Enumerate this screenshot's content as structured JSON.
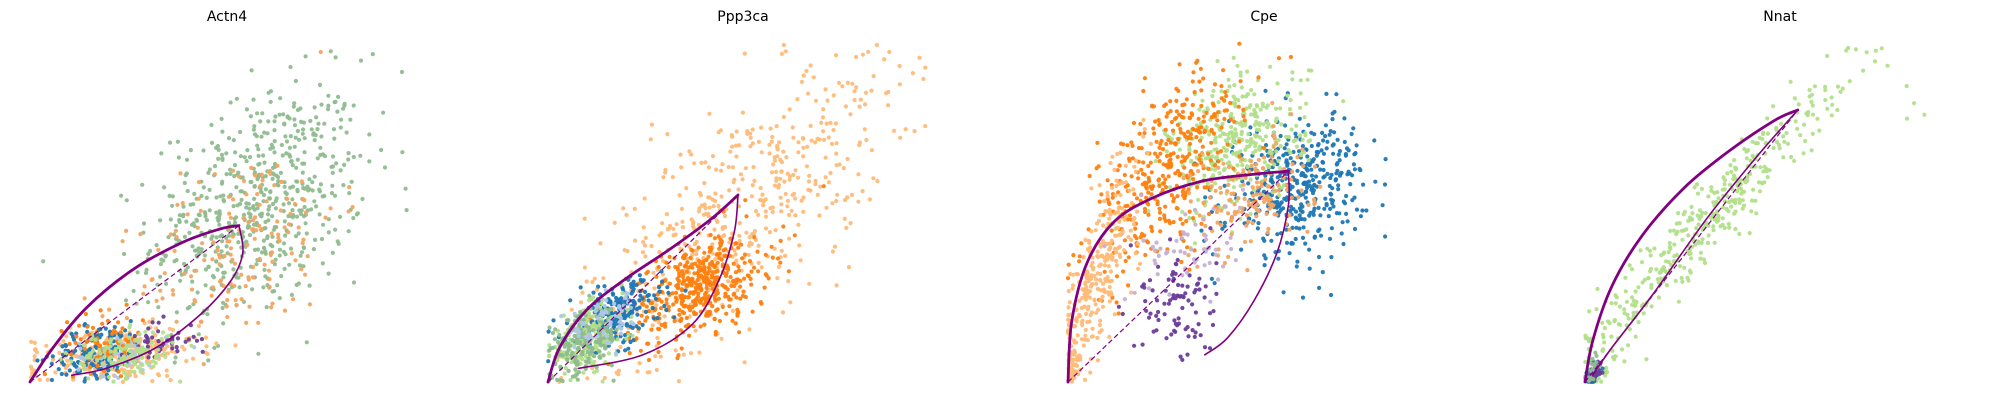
{
  "chart_data": [
    {
      "type": "scatter",
      "title": "Actn4",
      "xlabel": "",
      "ylabel": "",
      "axes": "off",
      "grid": false,
      "xlim": [
        0,
        1
      ],
      "ylim": [
        0,
        1
      ],
      "clusters": [
        {
          "color": "#8fbc8f",
          "count": 620,
          "cx": 0.6,
          "cy": 0.52,
          "sx": 0.14,
          "sy": 0.17,
          "rho": 0.35
        },
        {
          "color": "#ffbb78",
          "count": 260,
          "cx": 0.22,
          "cy": 0.08,
          "sx": 0.11,
          "sy": 0.04,
          "rho": 0.3
        },
        {
          "color": "#f4a460",
          "count": 160,
          "cx": 0.55,
          "cy": 0.4,
          "sx": 0.13,
          "sy": 0.15,
          "rho": 0.4
        },
        {
          "color": "#1f77b4",
          "count": 150,
          "cx": 0.18,
          "cy": 0.09,
          "sx": 0.06,
          "sy": 0.04,
          "rho": 0.2
        },
        {
          "color": "#aec7e8",
          "count": 60,
          "cx": 0.24,
          "cy": 0.08,
          "sx": 0.06,
          "sy": 0.03,
          "rho": 0.1
        },
        {
          "color": "#ff7f0e",
          "count": 70,
          "cx": 0.2,
          "cy": 0.12,
          "sx": 0.05,
          "sy": 0.04,
          "rho": 0.1
        },
        {
          "color": "#6a3d9a",
          "count": 45,
          "cx": 0.34,
          "cy": 0.12,
          "sx": 0.05,
          "sy": 0.03,
          "rho": 0.1
        },
        {
          "color": "#b2df8a",
          "count": 120,
          "cx": 0.25,
          "cy": 0.08,
          "sx": 0.07,
          "sy": 0.035,
          "rho": 0.2
        }
      ],
      "curve_up": [
        [
          0.0,
          0.0
        ],
        [
          0.06,
          0.1
        ],
        [
          0.15,
          0.22
        ],
        [
          0.27,
          0.33
        ],
        [
          0.4,
          0.41
        ],
        [
          0.5,
          0.45
        ],
        [
          0.55,
          0.46
        ]
      ],
      "curve_down": [
        [
          0.55,
          0.46
        ],
        [
          0.56,
          0.38
        ],
        [
          0.53,
          0.3
        ],
        [
          0.45,
          0.2
        ],
        [
          0.33,
          0.1
        ],
        [
          0.2,
          0.04
        ],
        [
          0.11,
          0.02
        ]
      ],
      "steady_state": [
        [
          0.0,
          0.0
        ],
        [
          0.55,
          0.46
        ]
      ]
    },
    {
      "type": "scatter",
      "title": "Ppp3ca",
      "xlabel": "",
      "ylabel": "",
      "axes": "off",
      "grid": false,
      "xlim": [
        0,
        1
      ],
      "ylim": [
        0,
        1
      ],
      "clusters": [
        {
          "color": "#ffbb78",
          "count": 520,
          "cx": 0.5,
          "cy": 0.5,
          "sx": 0.2,
          "sy": 0.22,
          "rho": 0.7
        },
        {
          "color": "#ff7f0e",
          "count": 420,
          "cx": 0.4,
          "cy": 0.28,
          "sx": 0.09,
          "sy": 0.08,
          "rho": 0.5
        },
        {
          "color": "#1f77b4",
          "count": 230,
          "cx": 0.18,
          "cy": 0.2,
          "sx": 0.06,
          "sy": 0.05,
          "rho": 0.4
        },
        {
          "color": "#b2df8a",
          "count": 200,
          "cx": 0.1,
          "cy": 0.12,
          "sx": 0.05,
          "sy": 0.05,
          "rho": 0.4
        },
        {
          "color": "#8fbc8f",
          "count": 180,
          "cx": 0.09,
          "cy": 0.11,
          "sx": 0.05,
          "sy": 0.05,
          "rho": 0.4
        },
        {
          "color": "#aec7e8",
          "count": 60,
          "cx": 0.16,
          "cy": 0.18,
          "sx": 0.05,
          "sy": 0.04,
          "rho": 0.3
        }
      ],
      "curve_up": [
        [
          0.0,
          0.0
        ],
        [
          0.03,
          0.1
        ],
        [
          0.1,
          0.21
        ],
        [
          0.2,
          0.3
        ],
        [
          0.32,
          0.39
        ],
        [
          0.43,
          0.48
        ],
        [
          0.5,
          0.55
        ]
      ],
      "curve_down": [
        [
          0.5,
          0.55
        ],
        [
          0.49,
          0.44
        ],
        [
          0.45,
          0.3
        ],
        [
          0.38,
          0.17
        ],
        [
          0.25,
          0.08
        ],
        [
          0.08,
          0.04
        ]
      ],
      "steady_state": [
        [
          0.0,
          0.0
        ],
        [
          0.5,
          0.55
        ]
      ]
    },
    {
      "type": "scatter",
      "title": "Cpe",
      "xlabel": "",
      "ylabel": "",
      "axes": "off",
      "grid": false,
      "xlim": [
        0,
        1
      ],
      "ylim": [
        0,
        1
      ],
      "clusters": [
        {
          "color": "#1f77b4",
          "count": 420,
          "cx": 0.6,
          "cy": 0.58,
          "sx": 0.09,
          "sy": 0.1,
          "rho": 0.2
        },
        {
          "color": "#b2df8a",
          "count": 350,
          "cx": 0.45,
          "cy": 0.7,
          "sx": 0.09,
          "sy": 0.1,
          "rho": 0.3
        },
        {
          "color": "#ff7f0e",
          "count": 380,
          "cx": 0.26,
          "cy": 0.62,
          "sx": 0.1,
          "sy": 0.15,
          "rho": 0.6
        },
        {
          "color": "#ffbb78",
          "count": 320,
          "cx": 0.07,
          "cy": 0.3,
          "sx": 0.06,
          "sy": 0.18,
          "rho": 0.85
        },
        {
          "color": "#f4a460",
          "count": 160,
          "cx": 0.48,
          "cy": 0.55,
          "sx": 0.08,
          "sy": 0.08,
          "rho": 0.2
        },
        {
          "color": "#6a3d9a",
          "count": 90,
          "cx": 0.29,
          "cy": 0.22,
          "sx": 0.05,
          "sy": 0.09,
          "rho": 0.0
        },
        {
          "color": "#c5b0d5",
          "count": 60,
          "cx": 0.32,
          "cy": 0.4,
          "sx": 0.07,
          "sy": 0.07,
          "rho": 0.1
        }
      ],
      "curve_up": [
        [
          0.0,
          0.0
        ],
        [
          0.01,
          0.18
        ],
        [
          0.05,
          0.35
        ],
        [
          0.12,
          0.47
        ],
        [
          0.22,
          0.54
        ],
        [
          0.35,
          0.59
        ],
        [
          0.48,
          0.61
        ],
        [
          0.58,
          0.62
        ]
      ],
      "curve_down": [
        [
          0.58,
          0.62
        ],
        [
          0.58,
          0.52
        ],
        [
          0.55,
          0.38
        ],
        [
          0.49,
          0.24
        ],
        [
          0.42,
          0.13
        ],
        [
          0.36,
          0.08
        ]
      ],
      "steady_state": [
        [
          0.0,
          0.0
        ],
        [
          0.58,
          0.62
        ]
      ]
    },
    {
      "type": "scatter",
      "title": "Nnat",
      "xlabel": "",
      "ylabel": "",
      "axes": "off",
      "grid": false,
      "xlim": [
        0,
        1
      ],
      "ylim": [
        0,
        1
      ],
      "clusters": [
        {
          "color": "#b2df8a",
          "count": 420,
          "cx": 0.3,
          "cy": 0.45,
          "sx": 0.2,
          "sy": 0.25,
          "rho": 0.97
        },
        {
          "color": "#1f77b4",
          "count": 40,
          "cx": 0.02,
          "cy": 0.02,
          "sx": 0.01,
          "sy": 0.015,
          "rho": 0.5
        },
        {
          "color": "#6a3d9a",
          "count": 30,
          "cx": 0.03,
          "cy": 0.03,
          "sx": 0.01,
          "sy": 0.015,
          "rho": 0.5
        },
        {
          "color": "#8fbc8f",
          "count": 20,
          "cx": 0.02,
          "cy": 0.04,
          "sx": 0.01,
          "sy": 0.02,
          "rho": 0.5
        }
      ],
      "curve_up": [
        [
          0.0,
          0.0
        ],
        [
          0.02,
          0.12
        ],
        [
          0.07,
          0.28
        ],
        [
          0.15,
          0.43
        ],
        [
          0.26,
          0.57
        ],
        [
          0.38,
          0.68
        ],
        [
          0.5,
          0.77
        ],
        [
          0.56,
          0.8
        ]
      ],
      "curve_down": [
        [
          0.56,
          0.8
        ],
        [
          0.45,
          0.66
        ],
        [
          0.32,
          0.48
        ],
        [
          0.18,
          0.26
        ],
        [
          0.07,
          0.1
        ],
        [
          0.02,
          0.02
        ]
      ],
      "steady_state": [
        [
          0.0,
          0.0
        ],
        [
          0.56,
          0.8
        ]
      ]
    }
  ]
}
